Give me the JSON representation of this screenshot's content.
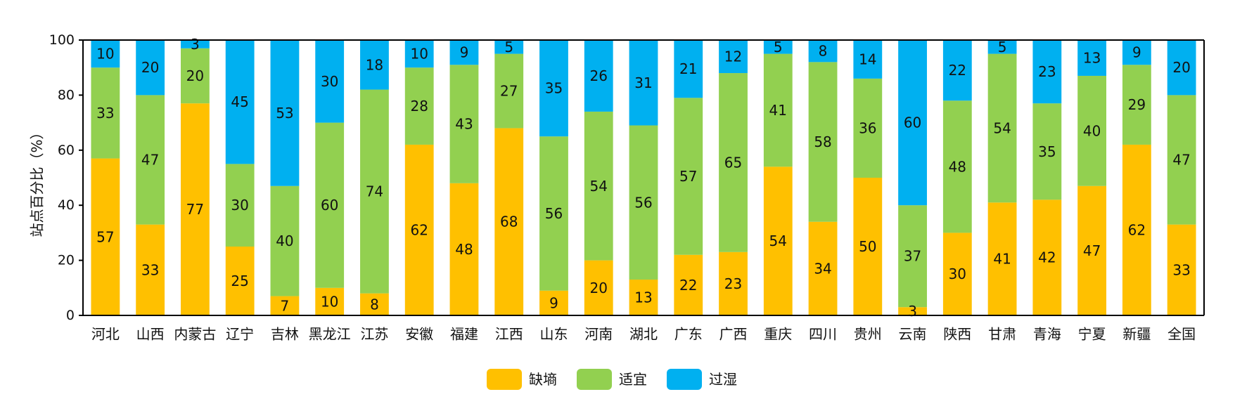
{
  "chart_data": {
    "type": "bar",
    "stacked": true,
    "title": "",
    "xlabel": "",
    "ylabel": "站点百分比（%）",
    "ylim": [
      0,
      100
    ],
    "yticks": [
      0,
      20,
      40,
      60,
      80,
      100
    ],
    "grid": false,
    "legend_position": "bottom-center",
    "categories": [
      "河北",
      "山西",
      "内蒙古",
      "辽宁",
      "吉林",
      "黑龙江",
      "江苏",
      "安徽",
      "福建",
      "江西",
      "山东",
      "河南",
      "湖北",
      "广东",
      "广西",
      "重庆",
      "四川",
      "贵州",
      "云南",
      "陕西",
      "甘肃",
      "青海",
      "宁夏",
      "新疆",
      "全国"
    ],
    "series": [
      {
        "name": "缺墒",
        "color": "#FFC000",
        "values": [
          57,
          33,
          77,
          25,
          7,
          10,
          8,
          62,
          48,
          68,
          9,
          20,
          13,
          22,
          23,
          54,
          34,
          50,
          3,
          30,
          41,
          42,
          47,
          62,
          33
        ]
      },
      {
        "name": "适宜",
        "color": "#92D050",
        "values": [
          33,
          47,
          20,
          30,
          40,
          60,
          74,
          28,
          43,
          27,
          56,
          54,
          56,
          57,
          65,
          41,
          58,
          36,
          37,
          48,
          54,
          35,
          40,
          29,
          47
        ]
      },
      {
        "name": "过湿",
        "color": "#00B0F0",
        "values": [
          10,
          20,
          3,
          45,
          53,
          30,
          18,
          10,
          9,
          5,
          35,
          26,
          31,
          21,
          12,
          5,
          8,
          14,
          60,
          22,
          5,
          23,
          13,
          9,
          20
        ]
      }
    ]
  }
}
